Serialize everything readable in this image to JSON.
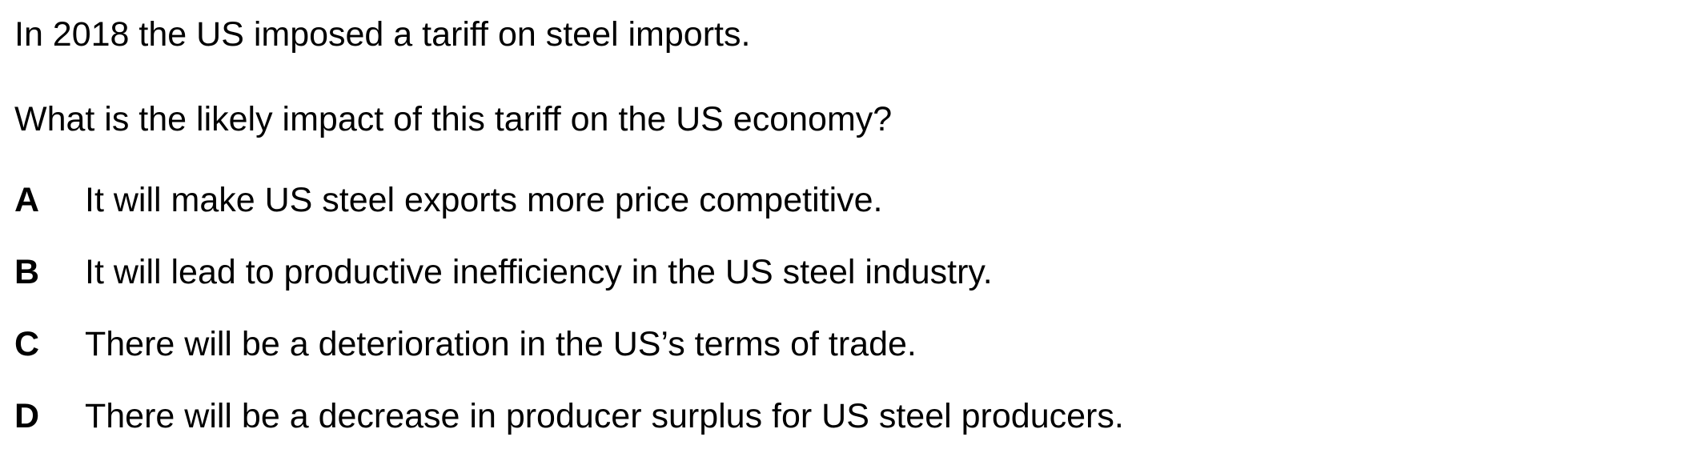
{
  "question": {
    "stem_lines": [
      "In 2018 the US imposed a tariff on steel imports.",
      "What is the likely impact of this tariff on the US economy?"
    ],
    "options": [
      {
        "letter": "A",
        "text": "It will make US steel exports more price competitive."
      },
      {
        "letter": "B",
        "text": "It will lead to productive inefficiency in the US steel industry."
      },
      {
        "letter": "C",
        "text": "There will be a deterioration in the US’s terms of trade."
      },
      {
        "letter": "D",
        "text": "There will be a decrease in producer surplus for US steel producers."
      }
    ]
  }
}
